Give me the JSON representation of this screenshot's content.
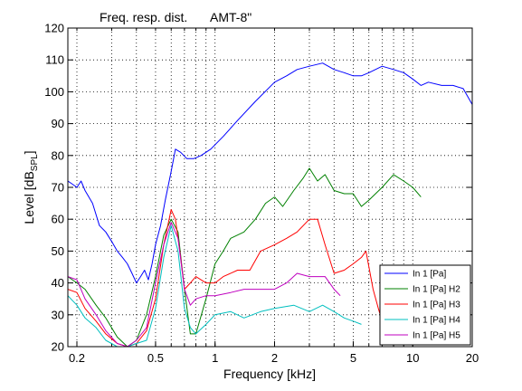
{
  "chart_data": {
    "type": "line",
    "title": "Freq. resp. dist.",
    "subtitle": "AMT-8\"",
    "xlabel": "Frequency [kHz]",
    "ylabel": "Level [dB",
    "ylabel_sub": "SPL",
    "ylabel_end": "]",
    "xscale": "log",
    "xlim": [
      0.18,
      20
    ],
    "ylim": [
      20,
      120
    ],
    "grid": true,
    "legend_position": "bottom-right",
    "x_ticks": [
      0.2,
      0.5,
      1,
      2,
      5,
      10,
      20
    ],
    "x_tick_labels": [
      "0.2",
      "0.5",
      "1",
      "2",
      "5",
      "10",
      "20"
    ],
    "y_ticks": [
      20,
      30,
      40,
      50,
      60,
      70,
      80,
      90,
      100,
      110,
      120
    ],
    "y_tick_labels": [
      "20",
      "30",
      "40",
      "50",
      "60",
      "70",
      "80",
      "90",
      "100",
      "110",
      "120"
    ],
    "series": [
      {
        "name": "In 1 [Pa]",
        "color": "#0000ff",
        "x": [
          0.18,
          0.19,
          0.2,
          0.21,
          0.22,
          0.24,
          0.26,
          0.28,
          0.3,
          0.32,
          0.34,
          0.36,
          0.38,
          0.4,
          0.42,
          0.44,
          0.46,
          0.48,
          0.5,
          0.53,
          0.56,
          0.6,
          0.63,
          0.67,
          0.72,
          0.78,
          0.85,
          0.95,
          1.1,
          1.3,
          1.6,
          2.0,
          2.3,
          2.6,
          3.0,
          3.5,
          4.0,
          4.5,
          5.0,
          5.5,
          6.0,
          7.0,
          8.0,
          9.0,
          10.0,
          11.0,
          12.0,
          14.0,
          16.0,
          18.0,
          20.0
        ],
        "y": [
          72,
          71,
          70,
          72,
          69,
          65,
          58,
          56,
          53,
          50,
          48,
          46,
          43,
          40,
          42,
          44,
          41,
          46,
          52,
          58,
          66,
          75,
          82,
          81,
          79,
          79,
          80,
          82,
          86,
          91,
          97,
          103,
          105,
          107,
          108,
          109,
          107,
          106,
          105,
          105,
          106,
          108,
          107,
          106,
          104,
          102,
          103,
          102,
          102,
          101,
          96
        ]
      },
      {
        "name": "In 1 [Pa] H2",
        "color": "#008000",
        "x": [
          0.18,
          0.2,
          0.22,
          0.25,
          0.28,
          0.32,
          0.36,
          0.4,
          0.45,
          0.5,
          0.55,
          0.6,
          0.65,
          0.7,
          0.75,
          0.8,
          0.9,
          1.0,
          1.1,
          1.2,
          1.4,
          1.6,
          1.8,
          2.0,
          2.2,
          2.5,
          2.8,
          3.0,
          3.3,
          3.6,
          4.0,
          4.5,
          5.0,
          5.5,
          6.0,
          7.0,
          8.0,
          9.0,
          10.0,
          11.0
        ],
        "y": [
          42,
          40,
          38,
          33,
          29,
          23,
          20,
          22,
          30,
          42,
          55,
          60,
          56,
          38,
          24,
          24,
          35,
          46,
          50,
          54,
          56,
          60,
          65,
          67,
          64,
          69,
          73,
          76,
          72,
          74,
          69,
          68,
          68,
          64,
          66,
          70,
          74,
          72,
          70,
          67
        ]
      },
      {
        "name": "In 1 [Pa] H3",
        "color": "#ff0000",
        "x": [
          0.18,
          0.2,
          0.22,
          0.25,
          0.28,
          0.32,
          0.36,
          0.4,
          0.45,
          0.5,
          0.55,
          0.6,
          0.63,
          0.67,
          0.7,
          0.75,
          0.8,
          0.9,
          1.0,
          1.1,
          1.3,
          1.5,
          1.7,
          2.0,
          2.3,
          2.6,
          3.0,
          3.3,
          3.6,
          4.0,
          4.5,
          5.0,
          5.5,
          5.8,
          6.0,
          6.3,
          6.7,
          7.0
        ],
        "y": [
          38,
          37,
          32,
          28,
          24,
          21,
          20,
          21,
          25,
          35,
          52,
          63,
          60,
          48,
          38,
          40,
          42,
          40,
          40,
          42,
          44,
          44,
          50,
          52,
          54,
          56,
          60,
          60,
          52,
          43,
          44,
          46,
          48,
          50,
          45,
          38,
          32,
          28
        ]
      },
      {
        "name": "In 1 [Pa] H4",
        "color": "#00bfbf",
        "x": [
          0.18,
          0.2,
          0.22,
          0.25,
          0.28,
          0.32,
          0.36,
          0.4,
          0.45,
          0.5,
          0.55,
          0.6,
          0.65,
          0.7,
          0.75,
          0.8,
          0.9,
          1.0,
          1.2,
          1.4,
          1.7,
          2.0,
          2.5,
          3.0,
          3.5,
          4.0,
          4.5,
          5.0,
          5.5
        ],
        "y": [
          36,
          33,
          29,
          26,
          22,
          20,
          20,
          21,
          22,
          32,
          48,
          58,
          50,
          32,
          26,
          24,
          27,
          30,
          31,
          29,
          31,
          32,
          33,
          31,
          33,
          31,
          29,
          28,
          27
        ]
      },
      {
        "name": "In 1 [Pa] H5",
        "color": "#bf00bf",
        "x": [
          0.18,
          0.2,
          0.22,
          0.25,
          0.28,
          0.32,
          0.36,
          0.4,
          0.45,
          0.5,
          0.55,
          0.6,
          0.65,
          0.7,
          0.75,
          0.8,
          0.9,
          1.0,
          1.2,
          1.4,
          1.7,
          2.0,
          2.3,
          2.6,
          3.0,
          3.3,
          3.6,
          4.0,
          4.3
        ],
        "y": [
          42,
          41,
          35,
          30,
          25,
          21,
          20,
          22,
          26,
          40,
          52,
          59,
          54,
          38,
          33,
          35,
          36,
          36,
          37,
          38,
          38,
          38,
          40,
          43,
          42,
          42,
          42,
          38,
          36
        ]
      }
    ]
  }
}
